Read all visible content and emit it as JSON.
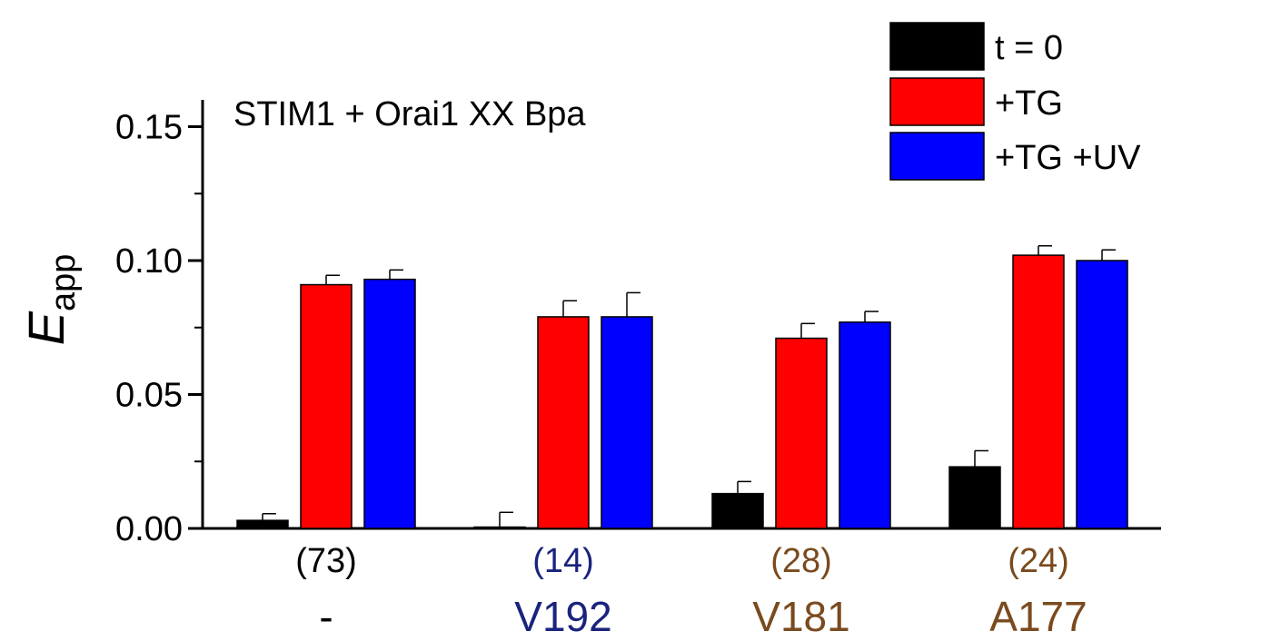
{
  "chart_data": {
    "type": "bar",
    "annotation": "STIM1 + Orai1 XX Bpa",
    "ylabel_main": "E",
    "ylabel_sub": "app",
    "ylim": [
      0,
      0.16
    ],
    "yticks": [
      {
        "value": 0.0,
        "label": "0.00"
      },
      {
        "value": 0.05,
        "label": "0.05"
      },
      {
        "value": 0.1,
        "label": "0.10"
      },
      {
        "value": 0.15,
        "label": "0.15"
      }
    ],
    "groups": [
      {
        "label": "-",
        "n": "(73)",
        "color": "#000000"
      },
      {
        "label": "V192",
        "n": "(14)",
        "color": "#1a237e"
      },
      {
        "label": "V181",
        "n": "(28)",
        "color": "#7a4a1e"
      },
      {
        "label": "A177",
        "n": "(24)",
        "color": "#7a4a1e"
      }
    ],
    "series": [
      {
        "name": "t = 0",
        "color": "#000000",
        "values": [
          0.003,
          0.0005,
          0.013,
          0.023
        ],
        "errors": [
          0.0025,
          0.0055,
          0.0045,
          0.006
        ]
      },
      {
        "name": "+TG",
        "color": "#ff0000",
        "values": [
          0.091,
          0.079,
          0.071,
          0.102
        ],
        "errors": [
          0.0035,
          0.006,
          0.0055,
          0.0035
        ]
      },
      {
        "name": "+TG +UV",
        "color": "#0000ff",
        "values": [
          0.093,
          0.079,
          0.077,
          0.1
        ],
        "errors": [
          0.0035,
          0.009,
          0.004,
          0.004
        ]
      }
    ],
    "legend_position": "top-right"
  }
}
